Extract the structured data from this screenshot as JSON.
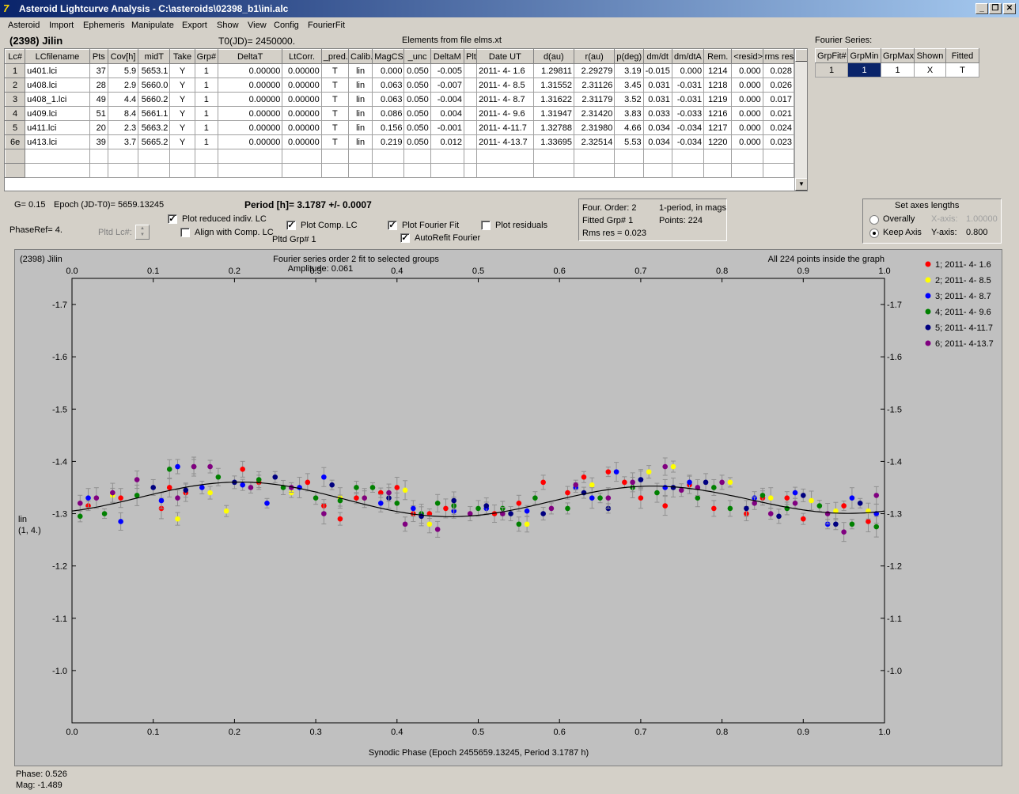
{
  "window": {
    "title": "Asteroid Lightcurve Analysis - C:\\asteroids\\02398_b1\\ini.alc",
    "min_label": "_",
    "restore_label": "❐",
    "close_label": "✕"
  },
  "menu": [
    "Asteroid",
    "Import",
    "Ephemeris",
    "Manipulate",
    "Export",
    "Show",
    "View",
    "Config",
    "FourierFit"
  ],
  "header": {
    "asteroid": "(2398) Jilin",
    "t0": "T0(JD)= 2450000.",
    "elements": "Elements from file elms.xt",
    "fourier_series_label": "Fourier Series:"
  },
  "lc_table": {
    "columns": [
      "Lc#",
      "LCfilename",
      "Pts",
      "Cov[h]",
      "midT",
      "Take",
      "Grp#",
      "DeltaT",
      "LtCorr.",
      "_pred.",
      "Calib.",
      "MagCS",
      "_unc",
      "DeltaM",
      "Plt",
      "Date UT",
      "d(au)",
      "r(au)",
      "p(deg)",
      "dm/dt",
      "dm/dtA",
      "Rem.",
      "<resid>",
      "rms res"
    ],
    "rows": [
      [
        "1",
        "u401.lci",
        "37",
        "5.9",
        "5653.1",
        "Y",
        "1",
        "0.00000",
        "0.00000",
        "T",
        "lin",
        "0.000",
        "0.050",
        "-0.005",
        "",
        "2011- 4- 1.6",
        "1.29811",
        "2.29279",
        "3.19",
        "-0.015",
        "0.000",
        "1214",
        "0.000",
        "0.028"
      ],
      [
        "2",
        "u408.lci",
        "28",
        "2.9",
        "5660.0",
        "Y",
        "1",
        "0.00000",
        "0.00000",
        "T",
        "lin",
        "0.063",
        "0.050",
        "-0.007",
        "",
        "2011- 4- 8.5",
        "1.31552",
        "2.31126",
        "3.45",
        "0.031",
        "-0.031",
        "1218",
        "0.000",
        "0.026"
      ],
      [
        "3",
        "u408_1.lci",
        "49",
        "4.4",
        "5660.2",
        "Y",
        "1",
        "0.00000",
        "0.00000",
        "T",
        "lin",
        "0.063",
        "0.050",
        "-0.004",
        "",
        "2011- 4- 8.7",
        "1.31622",
        "2.31179",
        "3.52",
        "0.031",
        "-0.031",
        "1219",
        "0.000",
        "0.017"
      ],
      [
        "4",
        "u409.lci",
        "51",
        "8.4",
        "5661.1",
        "Y",
        "1",
        "0.00000",
        "0.00000",
        "T",
        "lin",
        "0.086",
        "0.050",
        "0.004",
        "",
        "2011- 4- 9.6",
        "1.31947",
        "2.31420",
        "3.83",
        "0.033",
        "-0.033",
        "1216",
        "0.000",
        "0.021"
      ],
      [
        "5",
        "u411.lci",
        "20",
        "2.3",
        "5663.2",
        "Y",
        "1",
        "0.00000",
        "0.00000",
        "T",
        "lin",
        "0.156",
        "0.050",
        "-0.001",
        "",
        "2011- 4-11.7",
        "1.32788",
        "2.31980",
        "4.66",
        "0.034",
        "-0.034",
        "1217",
        "0.000",
        "0.024"
      ],
      [
        "6e",
        "u413.lci",
        "39",
        "3.7",
        "5665.2",
        "Y",
        "1",
        "0.00000",
        "0.00000",
        "T",
        "lin",
        "0.219",
        "0.050",
        "0.012",
        "",
        "2011- 4-13.7",
        "1.33695",
        "2.32514",
        "5.53",
        "0.034",
        "-0.034",
        "1220",
        "0.000",
        "0.023"
      ]
    ]
  },
  "fourier_table": {
    "columns": [
      "GrpFit#",
      "GrpMin",
      "GrpMax",
      "Shown",
      "Fitted"
    ],
    "row": [
      "1",
      "1",
      "1",
      "X",
      "T"
    ]
  },
  "controls": {
    "g": "G= 0.15",
    "epoch": "Epoch (JD-T0)= 5659.13245",
    "period": "Period [h]= 3.1787 +/- 0.0007",
    "phaseref": "PhaseRef= 4.",
    "pltd_lc": "Pltd Lc#:",
    "plot_reduced": "Plot reduced indiv. LC",
    "align_comp": "Align with Comp. LC",
    "plot_comp": "Plot Comp. LC",
    "pltd_grp": "Pltd Grp#  1",
    "plot_fourier": "Plot Fourier Fit",
    "autorefit": "AutoRefit Fourier",
    "plot_residuals": "Plot residuals",
    "info": {
      "order": "Four. Order:  2",
      "period_mags": "1-period, in mags",
      "fitted": "Fitted Grp# 1",
      "points": "Points: 224",
      "rms": "Rms res      = 0.023"
    },
    "axes": {
      "title": "Set axes lengths",
      "overally": "Overally",
      "keep_axis": "Keep Axis",
      "xaxis_label": "X-axis:",
      "xaxis_value": "1.00000",
      "yaxis_label": "Y-axis:",
      "yaxis_value": "0.800"
    }
  },
  "plot_text": {
    "name": "(2398) Jilin",
    "fit_title": "Fourier series order 2 fit to selected groups",
    "amplitude": "Amplitude: 0.061",
    "inside": "All 224 points inside the graph",
    "ylabel1": "lin",
    "ylabel2": "(1, 4.)",
    "xlabel": "Synodic Phase (Epoch 2455659.13245, Period 3.1787 h)"
  },
  "status": {
    "phase": "Phase:  0.526",
    "mag": "Mag:    -1.489"
  },
  "chart_data": {
    "type": "scatter",
    "xlabel": "Synodic Phase (Epoch 2455659.13245, Period 3.1787 h)",
    "ylabel": "lin (1, 4.)",
    "xlim": [
      0.0,
      1.0
    ],
    "ylim": [
      -0.9,
      -1.75
    ],
    "xticks": [
      "0.0",
      "0.1",
      "0.2",
      "0.3",
      "0.4",
      "0.5",
      "0.6",
      "0.7",
      "0.8",
      "0.9",
      "1.0"
    ],
    "yticks": [
      "-1.7",
      "-1.6",
      "-1.5",
      "-1.4",
      "-1.3",
      "-1.2",
      "-1.1",
      "-1.0"
    ],
    "legend_position": "right",
    "fourier_curve": {
      "mean": -1.327,
      "a1": -0.004,
      "b1": -0.003,
      "a2": 0.026,
      "b2": -0.014
    },
    "series": [
      {
        "name": "1; 2011- 4- 1.6",
        "color": "#ff0000",
        "x": [
          0.02,
          0.11,
          0.12,
          0.14,
          0.21,
          0.23,
          0.31,
          0.35,
          0.38,
          0.4,
          0.46,
          0.52,
          0.55,
          0.58,
          0.61,
          0.63,
          0.66,
          0.7,
          0.73,
          0.76,
          0.79,
          0.83,
          0.88,
          0.9,
          0.95,
          0.98,
          0.06,
          0.29,
          0.42,
          0.85,
          0.33,
          0.68,
          0.44
        ],
        "y": [
          -1.315,
          -1.31,
          -1.35,
          -1.34,
          -1.385,
          -1.36,
          -1.315,
          -1.33,
          -1.34,
          -1.35,
          -1.31,
          -1.3,
          -1.32,
          -1.36,
          -1.34,
          -1.37,
          -1.38,
          -1.33,
          -1.315,
          -1.355,
          -1.31,
          -1.3,
          -1.33,
          -1.29,
          -1.315,
          -1.285,
          -1.33,
          -1.36,
          -1.3,
          -1.33,
          -1.29,
          -1.36,
          -1.3
        ]
      },
      {
        "name": "2; 2011- 4- 8.5",
        "color": "#ffff00",
        "x": [
          0.05,
          0.13,
          0.19,
          0.27,
          0.33,
          0.41,
          0.44,
          0.56,
          0.64,
          0.71,
          0.74,
          0.81,
          0.86,
          0.91,
          0.94,
          0.98,
          0.36,
          0.17
        ],
        "y": [
          -1.335,
          -1.29,
          -1.305,
          -1.34,
          -1.33,
          -1.345,
          -1.28,
          -1.28,
          -1.355,
          -1.38,
          -1.39,
          -1.36,
          -1.33,
          -1.325,
          -1.305,
          -1.305,
          -1.33,
          -1.34
        ]
      },
      {
        "name": "3; 2011- 4- 8.7",
        "color": "#0000ff",
        "x": [
          0.02,
          0.06,
          0.11,
          0.13,
          0.16,
          0.21,
          0.24,
          0.28,
          0.31,
          0.38,
          0.42,
          0.47,
          0.51,
          0.56,
          0.62,
          0.64,
          0.67,
          0.7,
          0.73,
          0.76,
          0.84,
          0.89,
          0.93,
          0.96,
          0.99
        ],
        "y": [
          -1.33,
          -1.285,
          -1.325,
          -1.39,
          -1.35,
          -1.355,
          -1.32,
          -1.35,
          -1.37,
          -1.32,
          -1.31,
          -1.305,
          -1.31,
          -1.305,
          -1.35,
          -1.33,
          -1.38,
          -1.365,
          -1.35,
          -1.36,
          -1.33,
          -1.34,
          -1.28,
          -1.33,
          -1.3
        ]
      },
      {
        "name": "4; 2011- 4- 9.6",
        "color": "#008000",
        "x": [
          0.01,
          0.04,
          0.08,
          0.12,
          0.18,
          0.23,
          0.26,
          0.3,
          0.33,
          0.37,
          0.4,
          0.43,
          0.47,
          0.5,
          0.53,
          0.57,
          0.61,
          0.65,
          0.69,
          0.72,
          0.77,
          0.81,
          0.85,
          0.88,
          0.92,
          0.96,
          0.99,
          0.15,
          0.45,
          0.79,
          0.55,
          0.35
        ],
        "y": [
          -1.295,
          -1.3,
          -1.335,
          -1.385,
          -1.37,
          -1.365,
          -1.35,
          -1.33,
          -1.325,
          -1.35,
          -1.32,
          -1.3,
          -1.315,
          -1.31,
          -1.31,
          -1.33,
          -1.31,
          -1.33,
          -1.35,
          -1.34,
          -1.33,
          -1.31,
          -1.335,
          -1.31,
          -1.315,
          -1.28,
          -1.275,
          -1.39,
          -1.32,
          -1.35,
          -1.28,
          -1.35
        ]
      },
      {
        "name": "5; 2011- 4-11.7",
        "color": "#000080",
        "x": [
          0.1,
          0.14,
          0.2,
          0.25,
          0.32,
          0.39,
          0.43,
          0.47,
          0.51,
          0.54,
          0.58,
          0.63,
          0.66,
          0.7,
          0.74,
          0.78,
          0.83,
          0.87,
          0.9,
          0.94,
          0.97
        ],
        "y": [
          -1.35,
          -1.345,
          -1.36,
          -1.37,
          -1.355,
          -1.33,
          -1.295,
          -1.325,
          -1.315,
          -1.3,
          -1.3,
          -1.34,
          -1.31,
          -1.365,
          -1.35,
          -1.36,
          -1.31,
          -1.295,
          -1.335,
          -1.28,
          -1.32
        ]
      },
      {
        "name": "6; 2011- 4-13.7",
        "color": "#800080",
        "x": [
          0.03,
          0.05,
          0.08,
          0.13,
          0.15,
          0.17,
          0.22,
          0.27,
          0.31,
          0.36,
          0.39,
          0.45,
          0.49,
          0.53,
          0.59,
          0.62,
          0.66,
          0.69,
          0.73,
          0.77,
          0.8,
          0.84,
          0.86,
          0.89,
          0.93,
          0.95,
          0.99,
          0.01,
          0.41,
          0.75
        ],
        "y": [
          -1.33,
          -1.34,
          -1.365,
          -1.33,
          -1.39,
          -1.39,
          -1.35,
          -1.35,
          -1.3,
          -1.33,
          -1.34,
          -1.27,
          -1.3,
          -1.3,
          -1.31,
          -1.355,
          -1.33,
          -1.36,
          -1.39,
          -1.35,
          -1.36,
          -1.32,
          -1.3,
          -1.32,
          -1.3,
          -1.265,
          -1.335,
          -1.32,
          -1.28,
          -1.345
        ]
      }
    ]
  }
}
